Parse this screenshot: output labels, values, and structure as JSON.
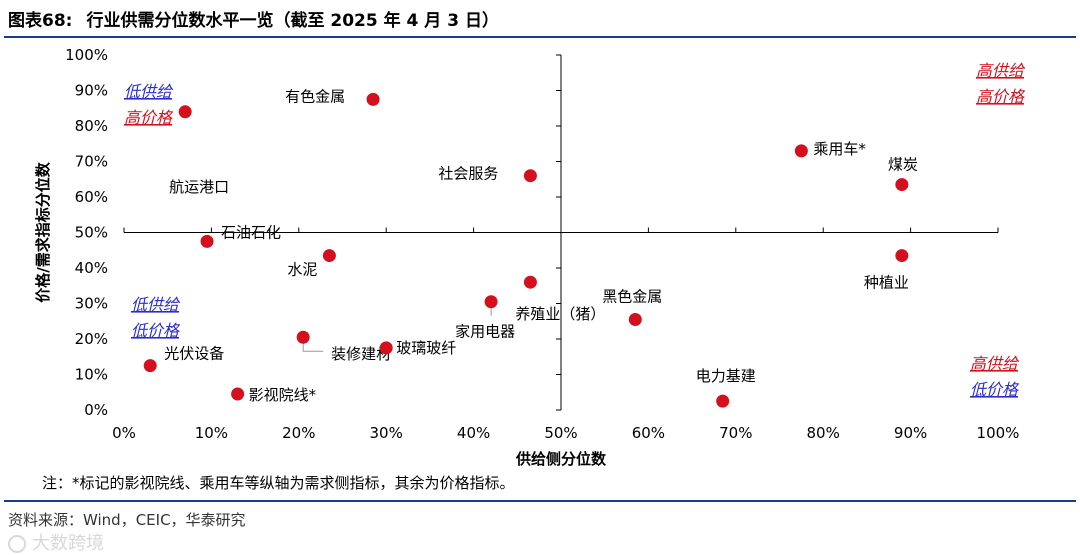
{
  "header": {
    "label": "图表68:",
    "title": "行业供需分位数水平一览（截至 2025 年 4 月 3 日）"
  },
  "chart_data": {
    "type": "scatter",
    "xlabel": "供给侧分位数",
    "ylabel": "价格/需求指标分位数",
    "xlim": [
      0,
      100
    ],
    "ylim": [
      0,
      100
    ],
    "xticks": [
      "0%",
      "10%",
      "20%",
      "30%",
      "40%",
      "50%",
      "60%",
      "70%",
      "80%",
      "90%",
      "100%"
    ],
    "yticks": [
      "0%",
      "10%",
      "20%",
      "30%",
      "40%",
      "50%",
      "60%",
      "70%",
      "80%",
      "90%",
      "100%"
    ],
    "marker_color": "#d40f1e",
    "points": [
      {
        "label": "航运港口",
        "x": 7,
        "y": 84
      },
      {
        "label": "有色金属",
        "x": 28.5,
        "y": 87.5
      },
      {
        "label": "社会服务",
        "x": 46.5,
        "y": 66
      },
      {
        "label": "乘用车*",
        "x": 77.5,
        "y": 73
      },
      {
        "label": "煤炭",
        "x": 89,
        "y": 63.5
      },
      {
        "label": "石油石化",
        "x": 9.5,
        "y": 47.5
      },
      {
        "label": "水泥",
        "x": 23.5,
        "y": 43.5
      },
      {
        "label": "种植业",
        "x": 89,
        "y": 43.5
      },
      {
        "label": "养殖业（猪）",
        "x": 46.5,
        "y": 36
      },
      {
        "label": "家用电器",
        "x": 42,
        "y": 30.5
      },
      {
        "label": "黑色金属",
        "x": 58.5,
        "y": 25.5
      },
      {
        "label": "装修建材",
        "x": 20.5,
        "y": 20.5
      },
      {
        "label": "玻璃玻纤",
        "x": 30,
        "y": 17.5
      },
      {
        "label": "光伏设备",
        "x": 3,
        "y": 12.5
      },
      {
        "label": "影视院线*",
        "x": 13,
        "y": 4.5
      },
      {
        "label": "电力基建",
        "x": 68.5,
        "y": 2.5
      }
    ],
    "quadrants": [
      {
        "name": "top-left",
        "lines": [
          {
            "text": "低供给",
            "color": "#2b2bd0"
          },
          {
            "text": "高价格",
            "color": "#d40f1e"
          }
        ]
      },
      {
        "name": "top-right",
        "lines": [
          {
            "text": "高供给",
            "color": "#d40f1e"
          },
          {
            "text": "高价格",
            "color": "#d40f1e"
          }
        ]
      },
      {
        "name": "bottom-left",
        "lines": [
          {
            "text": "低供给",
            "color": "#2b2bd0"
          },
          {
            "text": "低价格",
            "color": "#2b2bd0"
          }
        ]
      },
      {
        "name": "bottom-right",
        "lines": [
          {
            "text": "高供给",
            "color": "#d40f1e"
          },
          {
            "text": "低价格",
            "color": "#2b2bd0"
          }
        ]
      }
    ]
  },
  "footer": {
    "note": "注：*标记的影视院线、乘用车等纵轴为需求侧指标，其余为价格指标。",
    "source": "资料来源：Wind，CEIC，华泰研究",
    "watermark": "大数跨境"
  }
}
